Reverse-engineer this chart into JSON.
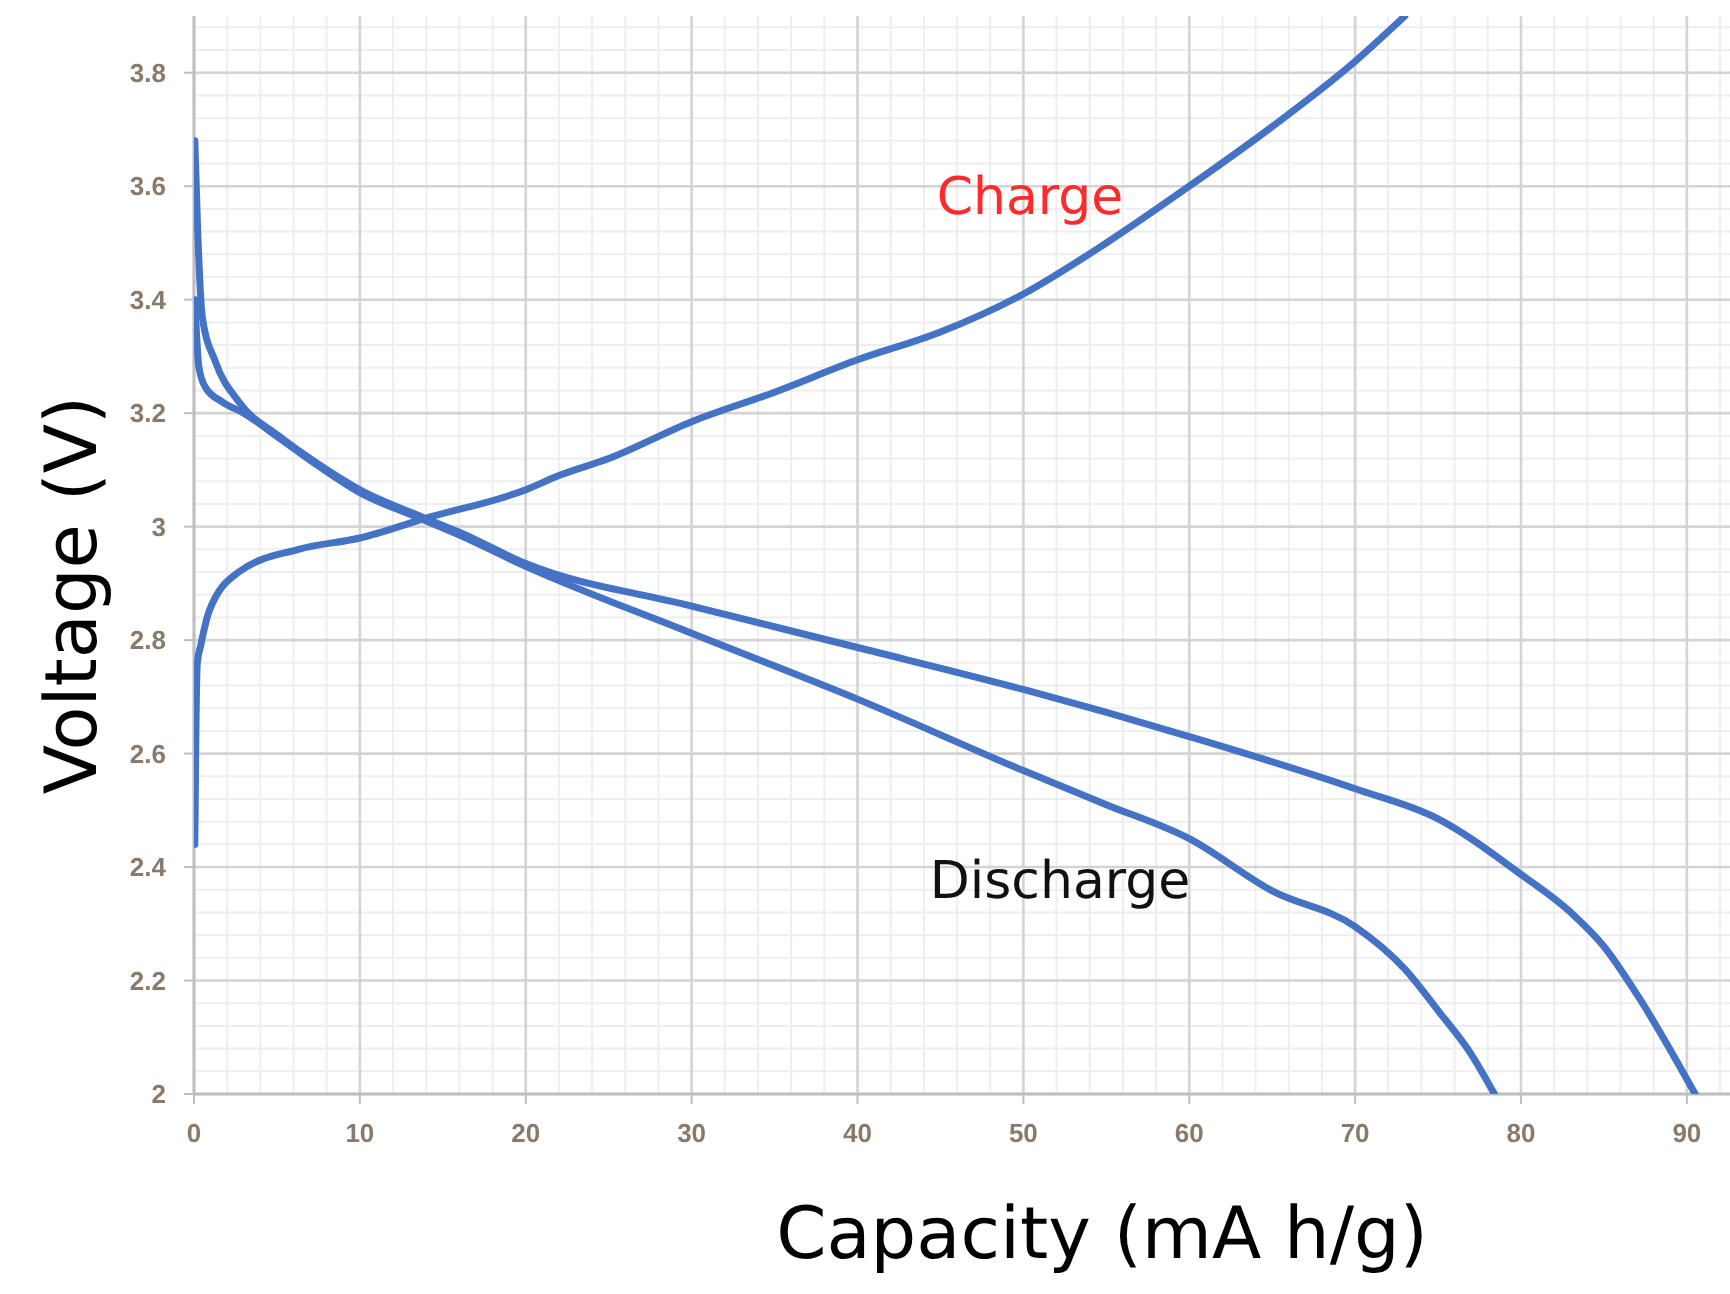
{
  "chart_data": {
    "type": "line",
    "xlabel": "Capacity (mA h/g)",
    "ylabel": "Voltage (V)",
    "xlim": [
      0,
      92.6
    ],
    "ylim": [
      2,
      3.9
    ],
    "xticks": [
      0,
      10,
      20,
      30,
      40,
      50,
      60,
      70,
      80,
      90
    ],
    "yticks": [
      2,
      2.2,
      2.4,
      2.6,
      2.8,
      3,
      3.2,
      3.4,
      3.6,
      3.8
    ],
    "grid": true,
    "line_style": "solid",
    "marker": "none",
    "series": [
      {
        "color": "#4472c4",
        "x": [
          0.05,
          0.1,
          0.2,
          0.4,
          0.9,
          2.7,
          6.3,
          10,
          14,
          20,
          22,
          25,
          30,
          35,
          40,
          45,
          50,
          55,
          60,
          65,
          70,
          73
        ],
        "values": [
          2.44,
          2.6,
          2.76,
          2.79,
          2.85,
          2.92,
          2.96,
          2.98,
          3.015,
          3.065,
          3.09,
          3.12,
          3.185,
          3.237,
          3.294,
          3.343,
          3.41,
          3.5,
          3.6,
          3.705,
          3.82,
          3.9
        ]
      },
      {
        "color": "#4472c4",
        "x": [
          0.05,
          0.3,
          0.7,
          1.7,
          3,
          5.1,
          7.5,
          10,
          13.5,
          16,
          20,
          30,
          40,
          50,
          55,
          60,
          65,
          70,
          73,
          75,
          77,
          78.4
        ],
        "values": [
          3.4,
          3.28,
          3.245,
          3.22,
          3.2,
          3.157,
          3.107,
          3.06,
          3.016,
          2.985,
          2.93,
          2.812,
          2.696,
          2.57,
          2.51,
          2.45,
          2.358,
          2.295,
          2.22,
          2.147,
          2.07,
          2.0
        ]
      },
      {
        "color": "#4472c4",
        "x": [
          0.05,
          0.2,
          0.5,
          1.3,
          2.7,
          5.1,
          7.5,
          10,
          13.5,
          16,
          20,
          30,
          40,
          50,
          60,
          70,
          75,
          80,
          83,
          85,
          87,
          90.5
        ],
        "values": [
          3.68,
          3.54,
          3.37,
          3.29,
          3.22,
          3.16,
          3.11,
          3.065,
          3.02,
          2.99,
          2.935,
          2.86,
          2.787,
          2.713,
          2.63,
          2.538,
          2.485,
          2.387,
          2.32,
          2.26,
          2.175,
          2.0
        ]
      }
    ],
    "annotations": [
      "Charge",
      "Discharge"
    ]
  }
}
